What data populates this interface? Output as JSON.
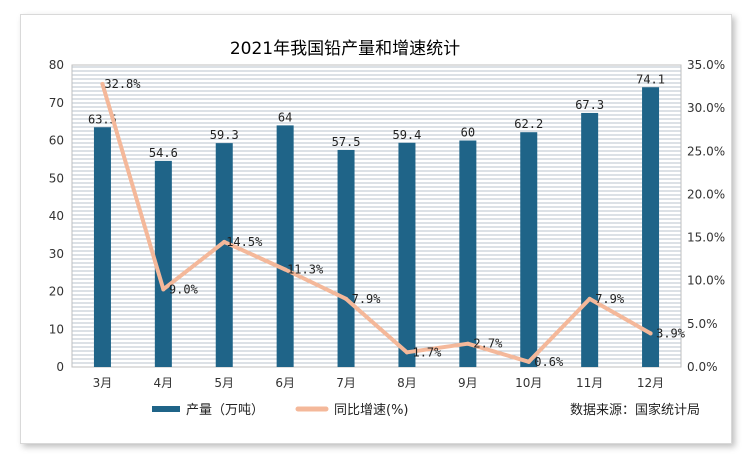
{
  "chart_data": {
    "type": "bar+line",
    "title": "2021年我国铅产量和增速统计",
    "categories": [
      "3月",
      "4月",
      "5月",
      "6月",
      "7月",
      "8月",
      "9月",
      "10月",
      "11月",
      "12月"
    ],
    "series": [
      {
        "name": "产量（万吨）",
        "type": "bar",
        "axis": "left",
        "color": "#1f6488",
        "values": [
          63.5,
          54.6,
          59.3,
          64,
          57.5,
          59.4,
          60,
          62.2,
          67.3,
          74.1
        ],
        "labels": [
          "63.5",
          "54.6",
          "59.3",
          "64",
          "57.5",
          "59.4",
          "60",
          "62.2",
          "67.3",
          "74.1"
        ]
      },
      {
        "name": "同比增速(%)",
        "type": "line",
        "axis": "right",
        "color": "#f4b89a",
        "values": [
          32.8,
          9.0,
          14.5,
          11.3,
          7.9,
          1.7,
          2.7,
          0.6,
          7.9,
          3.9
        ],
        "labels": [
          "32.8%",
          "9.0%",
          "14.5%",
          "11.3%",
          "7.9%",
          "1.7%",
          "2.7%",
          "0.6%",
          "7.9%",
          "3.9%"
        ]
      }
    ],
    "y_left": {
      "min": 0,
      "max": 80,
      "ticks": [
        "0",
        "10",
        "20",
        "30",
        "40",
        "50",
        "60",
        "70",
        "80"
      ]
    },
    "y_right": {
      "min": 0,
      "max": 35,
      "ticks": [
        "0.0%",
        "5.0%",
        "10.0%",
        "15.0%",
        "20.0%",
        "25.0%",
        "30.0%",
        "35.0%"
      ]
    },
    "grid": true,
    "legend_position": "bottom-left",
    "source": "数据来源：国家统计局"
  }
}
